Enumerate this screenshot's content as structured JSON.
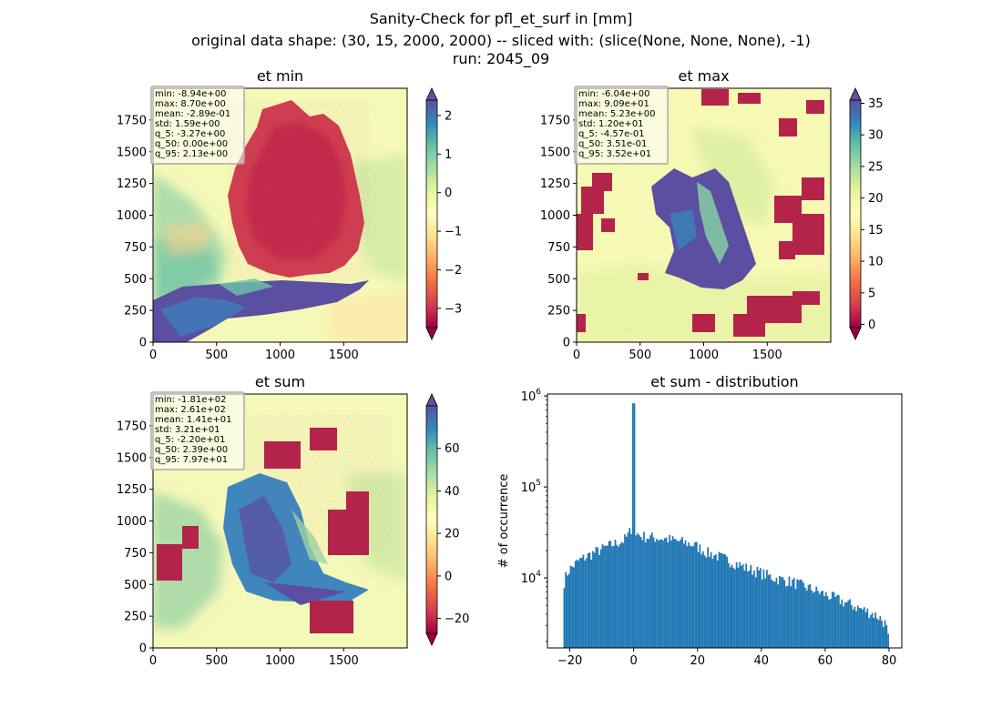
{
  "figure": {
    "title_lines": [
      "Sanity-Check for pfl_et_surf in [mm]",
      "original data shape: (30, 15, 2000, 2000) -- sliced with: (slice(None, None, None), -1)",
      "run: 2045_09"
    ]
  },
  "chart_data": [
    {
      "type": "heatmap",
      "title": "et min",
      "xlim": [
        0,
        2000
      ],
      "ylim": [
        0,
        2000
      ],
      "xticks": [
        0,
        500,
        1000,
        1500
      ],
      "yticks": [
        0,
        250,
        500,
        750,
        1000,
        1250,
        1500,
        1750
      ],
      "colormap": "Spectral",
      "colorbar": {
        "vmin": -3.5,
        "vmax": 2.4,
        "ticks": [
          -3,
          -2,
          -1,
          0,
          1,
          2
        ],
        "extend": "both"
      },
      "stats": [
        "min: -8.94e+00",
        "max: 8.70e+00",
        "mean: -2.89e-01",
        "std: 1.59e+00",
        "q_5: -3.27e+00",
        "q_50: 0.00e+00",
        "q_95: 2.13e+00"
      ]
    },
    {
      "type": "heatmap",
      "title": "et max",
      "xlim": [
        0,
        2000
      ],
      "ylim": [
        0,
        2000
      ],
      "xticks": [
        0,
        500,
        1000,
        1500
      ],
      "yticks": [
        0,
        250,
        500,
        750,
        1000,
        1250,
        1500,
        1750
      ],
      "colormap": "Spectral",
      "colorbar": {
        "vmin": -0.5,
        "vmax": 35.5,
        "ticks": [
          0,
          5,
          10,
          15,
          20,
          25,
          30,
          35
        ],
        "extend": "both"
      },
      "stats": [
        "min: -6.04e+00",
        "max: 9.09e+01",
        "mean: 5.23e+00",
        "std: 1.20e+01",
        "q_5: -4.57e-01",
        "q_50: 3.51e-01",
        "q_95: 3.52e+01"
      ]
    },
    {
      "type": "heatmap",
      "title": "et sum",
      "xlim": [
        0,
        2000
      ],
      "ylim": [
        0,
        2000
      ],
      "xticks": [
        0,
        500,
        1000,
        1500
      ],
      "yticks": [
        0,
        250,
        500,
        750,
        1000,
        1250,
        1500,
        1750
      ],
      "colormap": "Spectral",
      "colorbar": {
        "vmin": -27,
        "vmax": 80,
        "ticks": [
          -20,
          0,
          20,
          40,
          60
        ],
        "extend": "both"
      },
      "stats": [
        "min: -1.81e+02",
        "max: 2.61e+02",
        "mean: 1.41e+01",
        "std: 3.21e+01",
        "q_5: -2.20e+01",
        "q_50: 2.39e+00",
        "q_95: 7.97e+01"
      ]
    },
    {
      "type": "bar",
      "title": "et sum - distribution",
      "ylabel": "# of occurrence",
      "xlim": [
        -27,
        84
      ],
      "ylim": [
        1700,
        1050000
      ],
      "yscale": "log",
      "xticks": [
        -20,
        0,
        20,
        40,
        60,
        80
      ],
      "yticks": [
        10000,
        100000,
        1000000
      ],
      "ytick_labels": [
        "10^4",
        "10^5",
        "10^6"
      ],
      "color": "#1f77b4",
      "hist_profile": [
        [
          -22,
          8500
        ],
        [
          -21,
          11000
        ],
        [
          -20,
          12500
        ],
        [
          -19,
          13500
        ],
        [
          -18,
          14500
        ],
        [
          -17,
          15500
        ],
        [
          -15,
          17000
        ],
        [
          -13,
          18500
        ],
        [
          -11,
          20000
        ],
        [
          -9,
          21500
        ],
        [
          -7,
          23000
        ],
        [
          -5,
          24500
        ],
        [
          -3,
          26000
        ],
        [
          -2,
          28500
        ],
        [
          -1,
          33000
        ],
        [
          -0.5,
          37000
        ],
        [
          0,
          830000
        ],
        [
          0.5,
          32000
        ],
        [
          2,
          29000
        ],
        [
          5,
          28000
        ],
        [
          8,
          27500
        ],
        [
          10,
          27000
        ],
        [
          12,
          26000
        ],
        [
          15,
          25000
        ],
        [
          17,
          24000
        ],
        [
          19,
          23000
        ],
        [
          21,
          21000
        ],
        [
          23,
          19000
        ],
        [
          26,
          17500
        ],
        [
          29,
          16000
        ],
        [
          32,
          14500
        ],
        [
          35,
          13000
        ],
        [
          38,
          12000
        ],
        [
          41,
          11000
        ],
        [
          44,
          10000
        ],
        [
          47,
          9500
        ],
        [
          50,
          9000
        ],
        [
          53,
          8200
        ],
        [
          56,
          7500
        ],
        [
          59,
          6800
        ],
        [
          62,
          6200
        ],
        [
          65,
          5600
        ],
        [
          68,
          5100
        ],
        [
          71,
          4600
        ],
        [
          74,
          4200
        ],
        [
          77,
          3700
        ],
        [
          79,
          3100
        ],
        [
          80,
          1900
        ]
      ],
      "bin_width": 0.5
    }
  ]
}
